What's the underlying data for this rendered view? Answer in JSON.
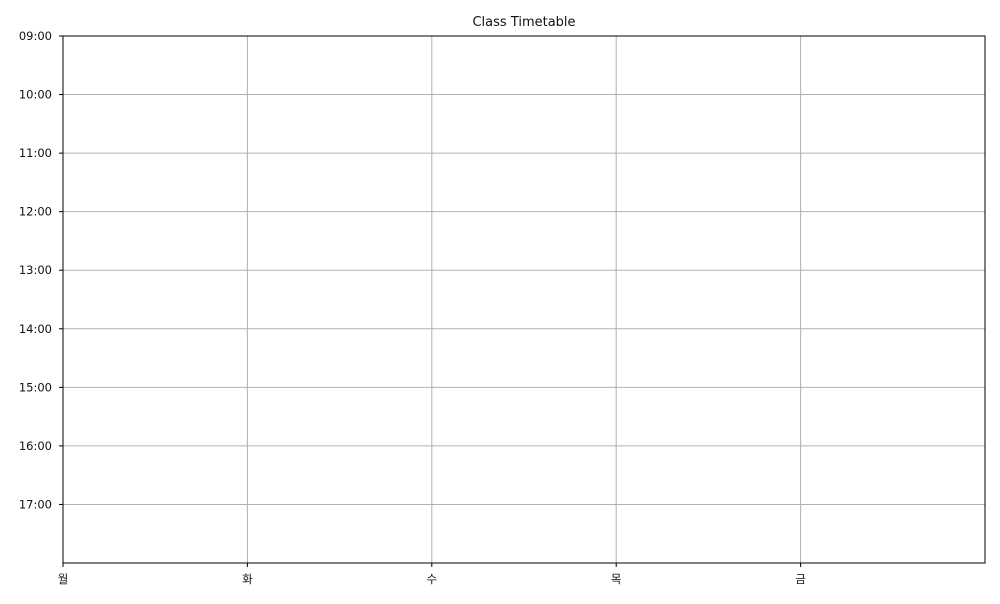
{
  "chart_data": {
    "type": "table",
    "title": "Class Timetable",
    "xlabel": "",
    "ylabel": "",
    "days": [
      "월",
      "화",
      "수",
      "목",
      "금"
    ],
    "xlim": [
      0,
      5
    ],
    "time_ticks": [
      "09:00",
      "10:00",
      "11:00",
      "12:00",
      "13:00",
      "14:00",
      "15:00",
      "16:00",
      "17:00"
    ],
    "ylim": [
      9,
      18
    ],
    "grid": true,
    "entries": []
  }
}
